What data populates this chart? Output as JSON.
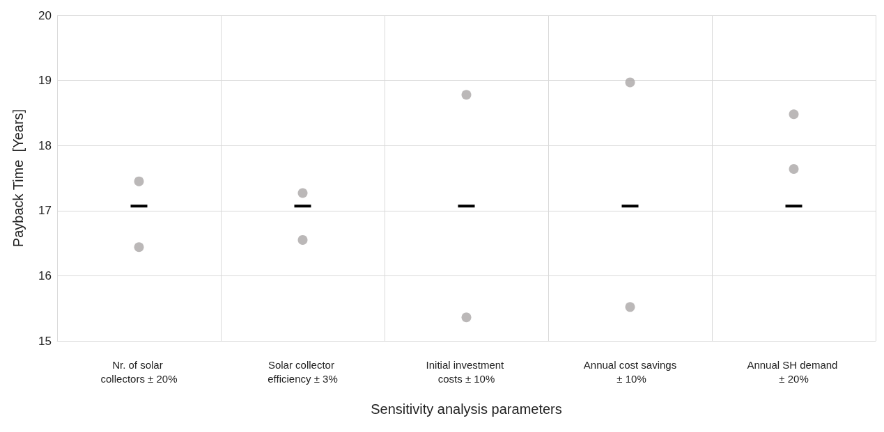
{
  "chart_data": {
    "type": "scatter",
    "xlabel": "Sensitivity analysis parameters",
    "ylabel": "Payback Time  [Years]",
    "categories": [
      "Nr. of solar collectors ± 20%",
      "Solar collector efficiency ± 3%",
      "Initial investment costs ± 10%",
      "Annual cost savings ± 10%",
      "Annual SH demand ± 20%"
    ],
    "series": [
      {
        "type": "box",
        "color": "#000000",
        "boxes": [
          {
            "low": 17.07,
            "q1": 17.07,
            "median": 17.07,
            "q3": 17.07,
            "high": 17.07
          },
          {
            "low": 17.07,
            "q1": 17.07,
            "median": 17.07,
            "q3": 17.07,
            "high": 17.07
          },
          {
            "low": 17.07,
            "q1": 17.07,
            "median": 17.07,
            "q3": 17.07,
            "high": 17.07
          },
          {
            "low": 17.07,
            "q1": 17.07,
            "median": 17.07,
            "q3": 17.07,
            "high": 17.07
          },
          {
            "low": 17.07,
            "q1": 17.07,
            "median": 17.07,
            "q3": 17.07,
            "high": 17.07
          }
        ]
      },
      {
        "color": "#aaa6a6",
        "marker": "circle",
        "values": [
          17.45,
          17.27,
          18.78,
          18.97,
          18.48
        ]
      },
      {
        "color": "#aaa6a6",
        "marker": "circle",
        "values": [
          16.44,
          16.55,
          15.36,
          15.52,
          17.64
        ]
      }
    ],
    "ylim": [
      15,
      20
    ],
    "yticks": [
      15,
      16,
      17,
      18,
      19,
      20
    ],
    "grid": true
  }
}
